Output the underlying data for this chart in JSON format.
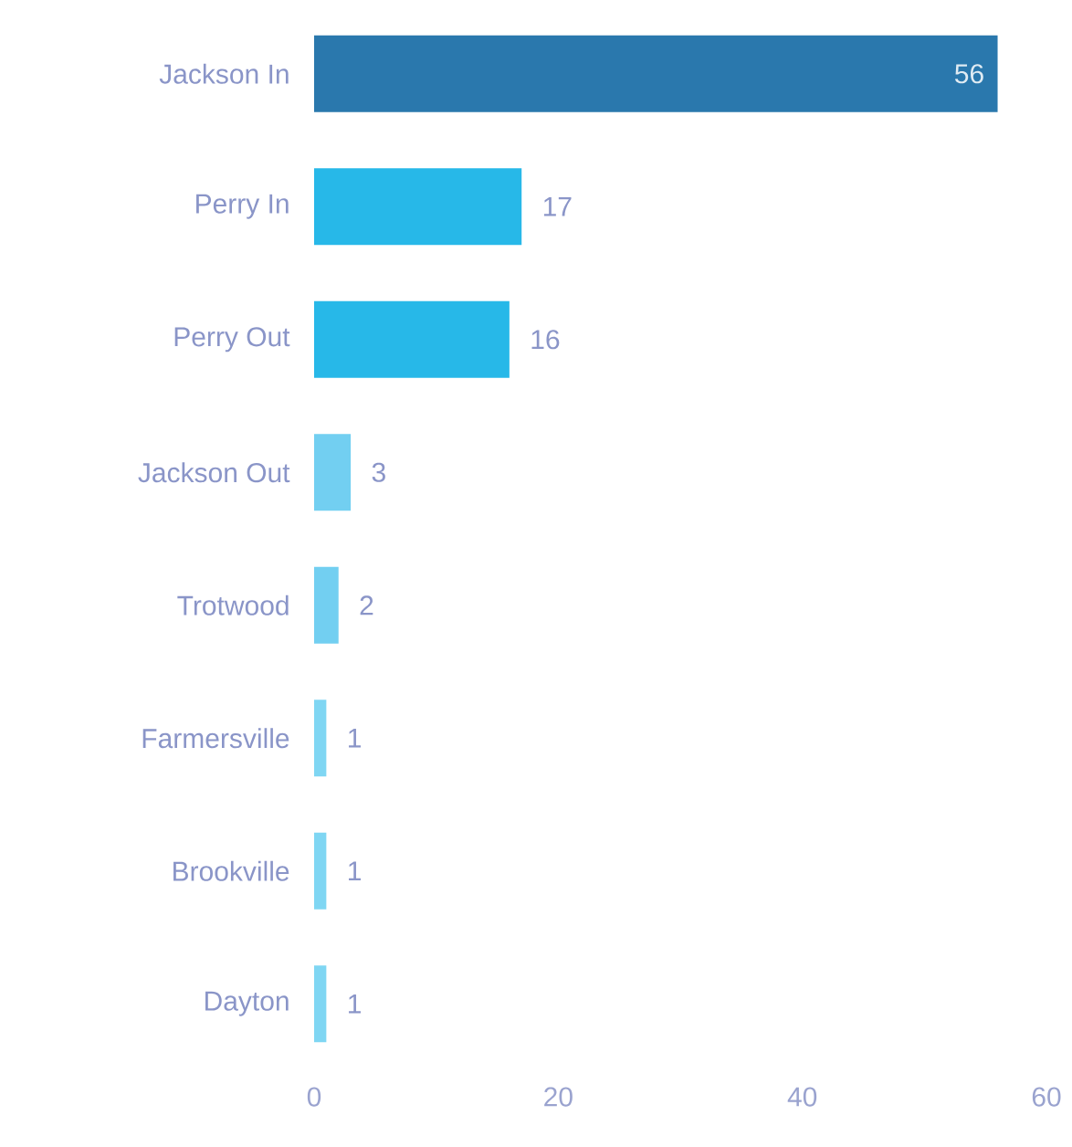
{
  "chart_data": {
    "type": "bar",
    "orientation": "horizontal",
    "categories": [
      "Jackson In",
      "Perry In",
      "Perry Out",
      "Jackson Out",
      "Trotwood",
      "Farmersville",
      "Brookville",
      "Dayton"
    ],
    "values": [
      56,
      17,
      16,
      3,
      2,
      1,
      1,
      1
    ],
    "colors": [
      "#2a78ad",
      "#27b8e8",
      "#27b8e8",
      "#72cff1",
      "#72cff1",
      "#7fd6f3",
      "#7fd6f3",
      "#7fd6f3"
    ],
    "xlim": [
      0,
      60
    ],
    "xticks": [
      0,
      20,
      40,
      60
    ],
    "data_labels": true
  }
}
